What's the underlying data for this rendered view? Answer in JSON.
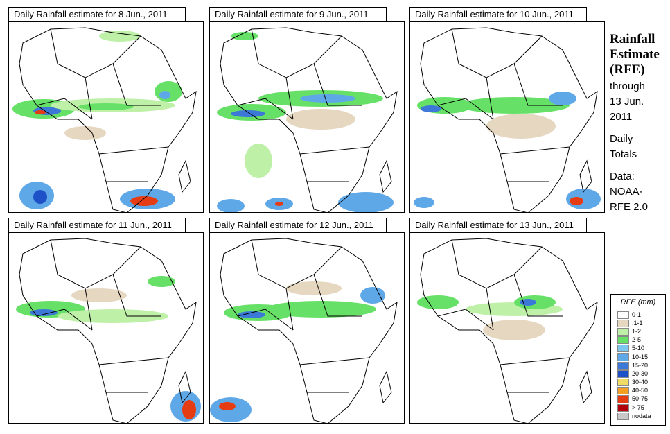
{
  "panels": [
    {
      "title": "Daily Rainfall estimate for  8 Jun., 2011"
    },
    {
      "title": "Daily Rainfall estimate for  9 Jun., 2011"
    },
    {
      "title": "Daily Rainfall estimate for  10 Jun., 2011"
    },
    {
      "title": "Daily Rainfall estimate for  11 Jun., 2011"
    },
    {
      "title": "Daily Rainfall estimate for  12 Jun., 2011"
    },
    {
      "title": "Daily Rainfall estimate for  13 Jun., 2011"
    }
  ],
  "side": {
    "title_line1": "Rainfall",
    "title_line2": "Estimate",
    "title_line3": "(RFE)",
    "through": "through",
    "date_line1": "13 Jun.",
    "date_line2": "2011",
    "daily": "Daily",
    "totals": "Totals",
    "data_label": "Data:",
    "source_line1": "NOAA-",
    "source_line2": "RFE 2.0"
  },
  "legend": {
    "title": "RFE (mm)",
    "items": [
      {
        "label": "0-1",
        "color": "#ffffff"
      },
      {
        "label": ".1-1",
        "color": "#e6d7c0"
      },
      {
        "label": "1-2",
        "color": "#bff0a8"
      },
      {
        "label": "2-5",
        "color": "#66e066"
      },
      {
        "label": "5-10",
        "color": "#7ec8f0"
      },
      {
        "label": "10-15",
        "color": "#5fa8e8"
      },
      {
        "label": "15-20",
        "color": "#3c78d8"
      },
      {
        "label": "20-30",
        "color": "#1e50c8"
      },
      {
        "label": "30-40",
        "color": "#f0dc64"
      },
      {
        "label": "40-50",
        "color": "#f5a023"
      },
      {
        "label": "50-75",
        "color": "#e63c14"
      },
      {
        "label": "> 75",
        "color": "#b4000a"
      },
      {
        "label": "nodata",
        "color": "#c8c8c8"
      }
    ]
  }
}
